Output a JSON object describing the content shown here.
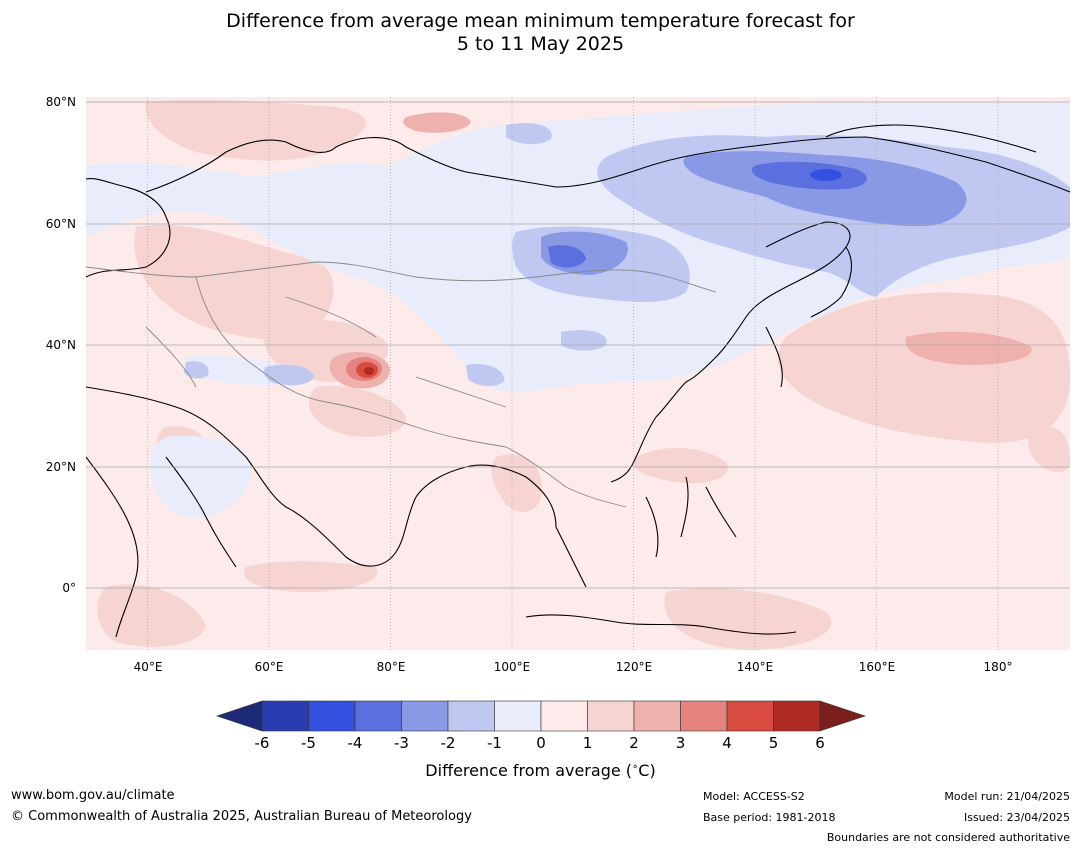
{
  "header": {
    "title_line1": "Difference from average mean minimum temperature forecast for",
    "title_line2": "5 to 11 May 2025"
  },
  "map": {
    "lat_labels": [
      "80°N",
      "60°N",
      "40°N",
      "20°N",
      "0°"
    ],
    "lon_labels": [
      "40°E",
      "60°E",
      "80°E",
      "100°E",
      "120°E",
      "140°E",
      "160°E",
      "180°"
    ],
    "colors": {
      "background": "#fcebea",
      "warm_1_2": "#f6d4d2",
      "warm_2_3": "#eeb1ad",
      "warm_3_4": "#e5847e",
      "warm_4_5": "#d94a41",
      "warm_5_6": "#b02a24",
      "cool_0_1": "#e8ecfb",
      "cool_1_2": "#c0c8f2",
      "cool_2_3": "#8a99e6",
      "cool_3_4": "#5b70de",
      "coastline": "#000000",
      "borders": "#888888",
      "grid": "#999999"
    }
  },
  "legend": {
    "tick_labels": [
      "-6",
      "-5",
      "-4",
      "-3",
      "-2",
      "-1",
      "0",
      "1",
      "2",
      "3",
      "4",
      "5",
      "6"
    ],
    "colors": [
      "#1c2a78",
      "#2a3db0",
      "#3450e0",
      "#5b70de",
      "#8a99e6",
      "#c0c8f2",
      "#e8ecfb",
      "#fcebea",
      "#f6d4d2",
      "#eeb1ad",
      "#e5847e",
      "#d94a41",
      "#b02a24",
      "#7a1f1c"
    ],
    "label": "Difference from average (",
    "label_degree": "∘",
    "label_unit": "C)"
  },
  "footer": {
    "website": "www.bom.gov.au/climate",
    "copyright": "© Commonwealth of Australia 2025, Australian Bureau of Meteorology",
    "model": "Model: ACCESS-S2",
    "base_period": "Base period: 1981-2018",
    "model_run": "Model run: 21/04/2025",
    "issued": "Issued: 23/04/2025",
    "disclaimer": "Boundaries are not considered authoritative"
  }
}
